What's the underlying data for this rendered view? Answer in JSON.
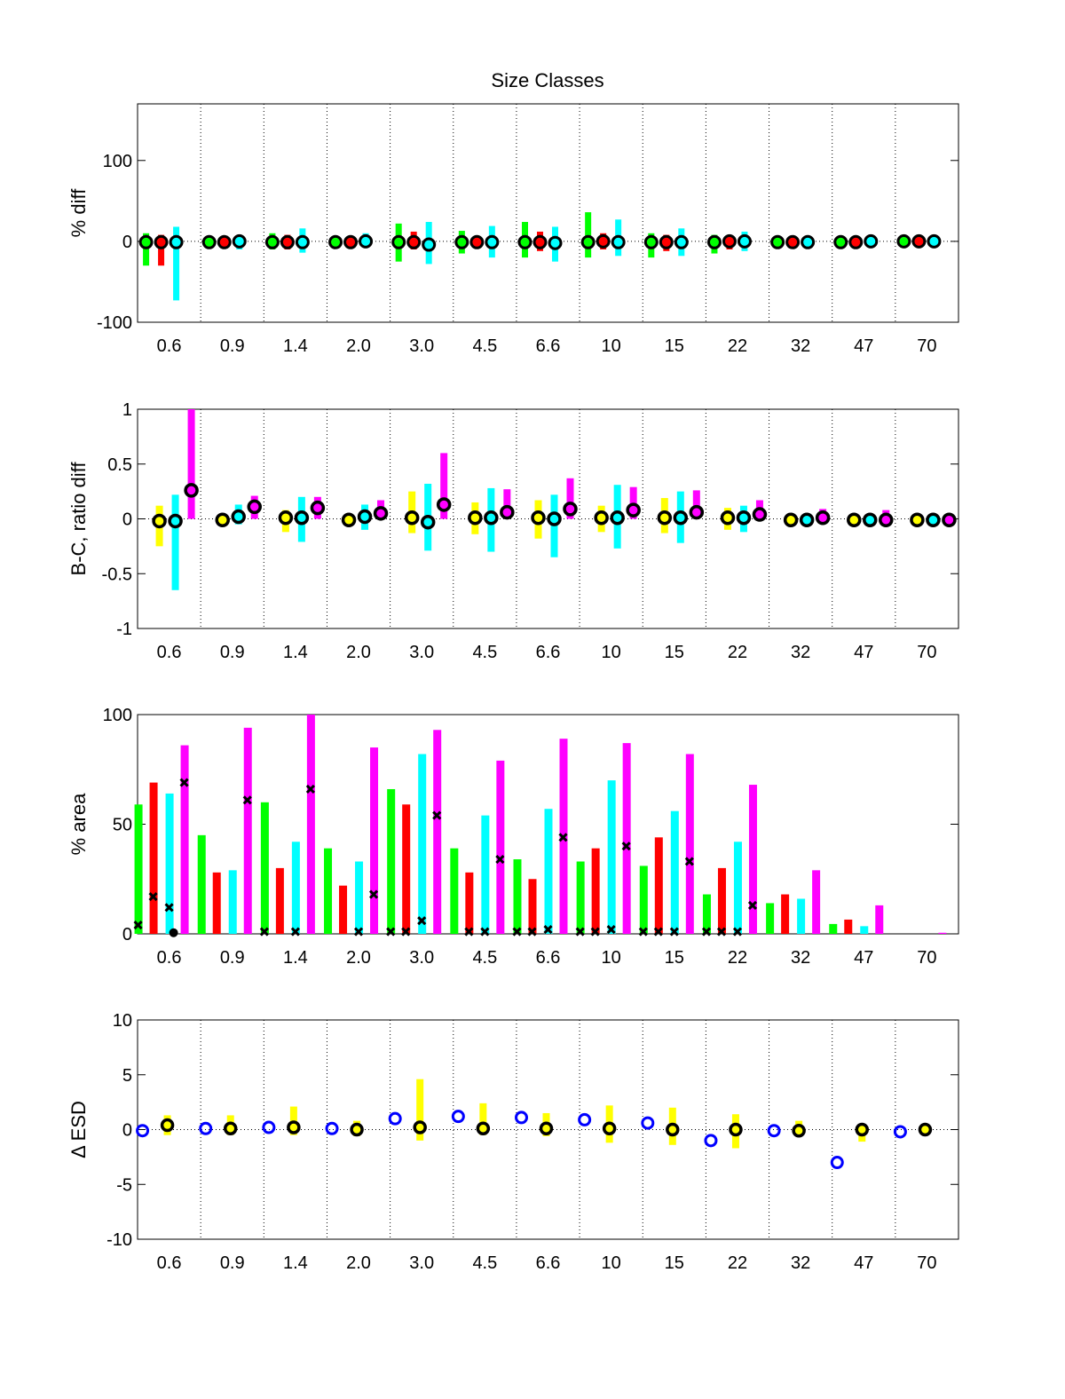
{
  "figure": {
    "title": "Size Classes"
  },
  "colors": {
    "green": "#00ff00",
    "red": "#ff0000",
    "cyan": "#00ffff",
    "magenta": "#ff00ff",
    "yellow": "#ffff00",
    "blue": "#0000ff",
    "black": "#000000"
  },
  "chart_data": [
    {
      "type": "scatter",
      "id": "pct-diff",
      "title": "Size Classes",
      "xlabel": "",
      "ylabel": "% diff",
      "ylim": [
        -100,
        170
      ],
      "yticks": [
        -100,
        0,
        100
      ],
      "categories": [
        "0.6",
        "0.9",
        "1.4",
        "2.0",
        "3.0",
        "4.5",
        "6.6",
        "10",
        "15",
        "22",
        "32",
        "47",
        "70"
      ],
      "grid": "vertical dotted separators",
      "series": [
        {
          "color": "green",
          "range": [
            [
              -30,
              10
            ],
            [
              -3,
              2
            ],
            [
              -10,
              10
            ],
            [
              -3,
              3
            ],
            [
              -25,
              22
            ],
            [
              -15,
              13
            ],
            [
              -20,
              24
            ],
            [
              -20,
              36
            ],
            [
              -20,
              10
            ],
            [
              -15,
              8
            ],
            [
              -2,
              2
            ],
            [
              -2,
              2
            ],
            [
              -1,
              1
            ]
          ],
          "center": [
            -1,
            -1,
            -1,
            -1,
            -1,
            -1,
            -1,
            -1,
            -1,
            -1,
            -1,
            -1,
            0
          ]
        },
        {
          "color": "red",
          "range": [
            [
              -30,
              8
            ],
            [
              -3,
              2
            ],
            [
              -10,
              8
            ],
            [
              -3,
              3
            ],
            [
              -10,
              12
            ],
            [
              -8,
              6
            ],
            [
              -12,
              12
            ],
            [
              -10,
              10
            ],
            [
              -12,
              8
            ],
            [
              -10,
              6
            ],
            [
              -2,
              2
            ],
            [
              -2,
              2
            ],
            [
              -1,
              1
            ]
          ],
          "center": [
            -1,
            -1,
            -1,
            -1,
            -1,
            -1,
            -1,
            0,
            -1,
            0,
            -1,
            -1,
            0
          ]
        },
        {
          "color": "cyan",
          "range": [
            [
              -73,
              18
            ],
            [
              -10,
              6
            ],
            [
              -14,
              16
            ],
            [
              -8,
              10
            ],
            [
              -28,
              24
            ],
            [
              -20,
              19
            ],
            [
              -25,
              18
            ],
            [
              -18,
              27
            ],
            [
              -18,
              16
            ],
            [
              -12,
              12
            ],
            [
              -4,
              4
            ],
            [
              -4,
              4
            ],
            [
              -1,
              1
            ]
          ],
          "center": [
            -1,
            0,
            -1,
            0,
            -4,
            -1,
            -2,
            -1,
            -1,
            0,
            -1,
            0,
            0
          ]
        }
      ]
    },
    {
      "type": "scatter",
      "id": "bc-ratio-diff",
      "xlabel": "",
      "ylabel": "B-C, ratio diff",
      "ylim": [
        -1,
        1
      ],
      "yticks": [
        -1,
        -0.5,
        0,
        0.5,
        1
      ],
      "categories": [
        "0.6",
        "0.9",
        "1.4",
        "2.0",
        "3.0",
        "4.5",
        "6.6",
        "10",
        "15",
        "22",
        "32",
        "47",
        "70"
      ],
      "grid": "vertical dotted separators",
      "series": [
        {
          "color": "yellow",
          "range": [
            [
              -0.25,
              0.12
            ],
            [
              -0.05,
              0.03
            ],
            [
              -0.12,
              0.08
            ],
            [
              -0.03,
              0.02
            ],
            [
              -0.13,
              0.25
            ],
            [
              -0.14,
              0.15
            ],
            [
              -0.18,
              0.17
            ],
            [
              -0.12,
              0.12
            ],
            [
              -0.13,
              0.19
            ],
            [
              -0.1,
              0.1
            ],
            [
              -0.03,
              0.02
            ],
            [
              -0.02,
              0.02
            ],
            [
              -0.01,
              0.01
            ]
          ],
          "center": [
            -0.02,
            -0.01,
            0.01,
            -0.01,
            0.01,
            0.01,
            0.01,
            0.01,
            0.01,
            0.01,
            -0.01,
            -0.01,
            -0.01
          ]
        },
        {
          "color": "cyan",
          "range": [
            [
              -0.65,
              0.22
            ],
            [
              -0.05,
              0.13
            ],
            [
              -0.21,
              0.2
            ],
            [
              -0.1,
              0.13
            ],
            [
              -0.29,
              0.32
            ],
            [
              -0.3,
              0.28
            ],
            [
              -0.35,
              0.22
            ],
            [
              -0.27,
              0.31
            ],
            [
              -0.22,
              0.25
            ],
            [
              -0.12,
              0.12
            ],
            [
              -0.05,
              0.05
            ],
            [
              -0.02,
              0.02
            ],
            [
              -0.01,
              0.01
            ]
          ],
          "center": [
            -0.02,
            0.02,
            0.01,
            0.02,
            -0.03,
            0.01,
            0.0,
            0.01,
            0.01,
            0.01,
            -0.01,
            -0.01,
            -0.01
          ]
        },
        {
          "color": "magenta",
          "range": [
            [
              0,
              1.0
            ],
            [
              0,
              0.21
            ],
            [
              0,
              0.2
            ],
            [
              0,
              0.17
            ],
            [
              0,
              0.6
            ],
            [
              0,
              0.27
            ],
            [
              0,
              0.37
            ],
            [
              0,
              0.29
            ],
            [
              0,
              0.26
            ],
            [
              0,
              0.17
            ],
            [
              0,
              0.09
            ],
            [
              0,
              0.08
            ],
            [
              0,
              0.01
            ]
          ],
          "center": [
            0.26,
            0.11,
            0.1,
            0.05,
            0.13,
            0.06,
            0.09,
            0.08,
            0.06,
            0.04,
            0.01,
            -0.01,
            -0.01
          ]
        }
      ]
    },
    {
      "type": "bar",
      "id": "pct-area",
      "xlabel": "",
      "ylabel": "% area",
      "ylim": [
        0,
        100
      ],
      "yticks": [
        0,
        50,
        100
      ],
      "categories": [
        "0.6",
        "0.9",
        "1.4",
        "2.0",
        "3.0",
        "4.5",
        "6.6",
        "10",
        "15",
        "22",
        "32",
        "47",
        "70"
      ],
      "series": [
        {
          "color": "green",
          "values": [
            59,
            45,
            60,
            39,
            66,
            39,
            34,
            33,
            31,
            18,
            14,
            4.5,
            0
          ]
        },
        {
          "color": "red",
          "values": [
            69,
            28,
            30,
            22,
            59,
            28,
            25,
            39,
            44,
            30,
            18,
            6.5,
            0
          ]
        },
        {
          "color": "cyan",
          "values": [
            64,
            29,
            42,
            33,
            82,
            54,
            57,
            70,
            56,
            42,
            16,
            3.5,
            0
          ]
        },
        {
          "color": "magenta",
          "values": [
            86,
            94,
            100,
            85,
            93,
            79,
            89,
            87,
            82,
            68,
            29,
            13,
            0.5
          ]
        }
      ],
      "markers": [
        {
          "color": "black",
          "symbol": "x",
          "series_index": 0,
          "values": [
            4,
            null,
            1,
            null,
            1,
            null,
            1,
            1,
            1,
            1,
            null,
            null,
            null
          ]
        },
        {
          "color": "black",
          "symbol": "x",
          "series_index": 1,
          "values": [
            17,
            null,
            null,
            null,
            1,
            1,
            1,
            1,
            1,
            1,
            null,
            null,
            null
          ]
        },
        {
          "color": "black",
          "symbol": "x",
          "series_index": 2,
          "values": [
            12,
            null,
            1,
            1,
            6,
            1,
            2,
            2,
            1,
            1,
            null,
            null,
            null
          ]
        },
        {
          "color": "black",
          "symbol": "x",
          "series_index": 3,
          "values": [
            69,
            61,
            66,
            18,
            54,
            34,
            44,
            40,
            33,
            13,
            null,
            null,
            null
          ]
        }
      ],
      "dot": {
        "series_index": 1,
        "category_index": 0,
        "value": 0.5
      }
    },
    {
      "type": "scatter",
      "id": "delta-esd",
      "xlabel": "",
      "ylabel": "Δ ESD",
      "ylim": [
        -10,
        10
      ],
      "yticks": [
        -10,
        -5,
        0,
        5,
        10
      ],
      "categories": [
        "0.6",
        "0.9",
        "1.4",
        "2.0",
        "3.0",
        "4.5",
        "6.6",
        "10",
        "15",
        "22",
        "32",
        "47",
        "70"
      ],
      "grid": "vertical dotted separators",
      "blue_points": [
        -0.1,
        0.1,
        0.2,
        0.1,
        1.0,
        1.2,
        1.1,
        0.9,
        0.6,
        -1.0,
        -0.1,
        -3.0,
        -0.2
      ],
      "yellow_range": [
        [
          -0.5,
          1.3
        ],
        [
          -0.5,
          1.3
        ],
        [
          -0.5,
          2.1
        ],
        [
          -0.6,
          0.8
        ],
        [
          -1.0,
          4.6
        ],
        [
          -0.5,
          2.4
        ],
        [
          -0.6,
          1.5
        ],
        [
          -1.2,
          2.2
        ],
        [
          -1.4,
          2.0
        ],
        [
          -1.7,
          1.4
        ],
        [
          -0.5,
          0.8
        ],
        [
          -1.1,
          0.3
        ],
        [
          -0.2,
          0.2
        ]
      ],
      "black_circles": [
        0.4,
        0.1,
        0.2,
        0.0,
        0.2,
        0.1,
        0.1,
        0.1,
        0.0,
        0.0,
        -0.1,
        0.0,
        0.0
      ]
    }
  ]
}
